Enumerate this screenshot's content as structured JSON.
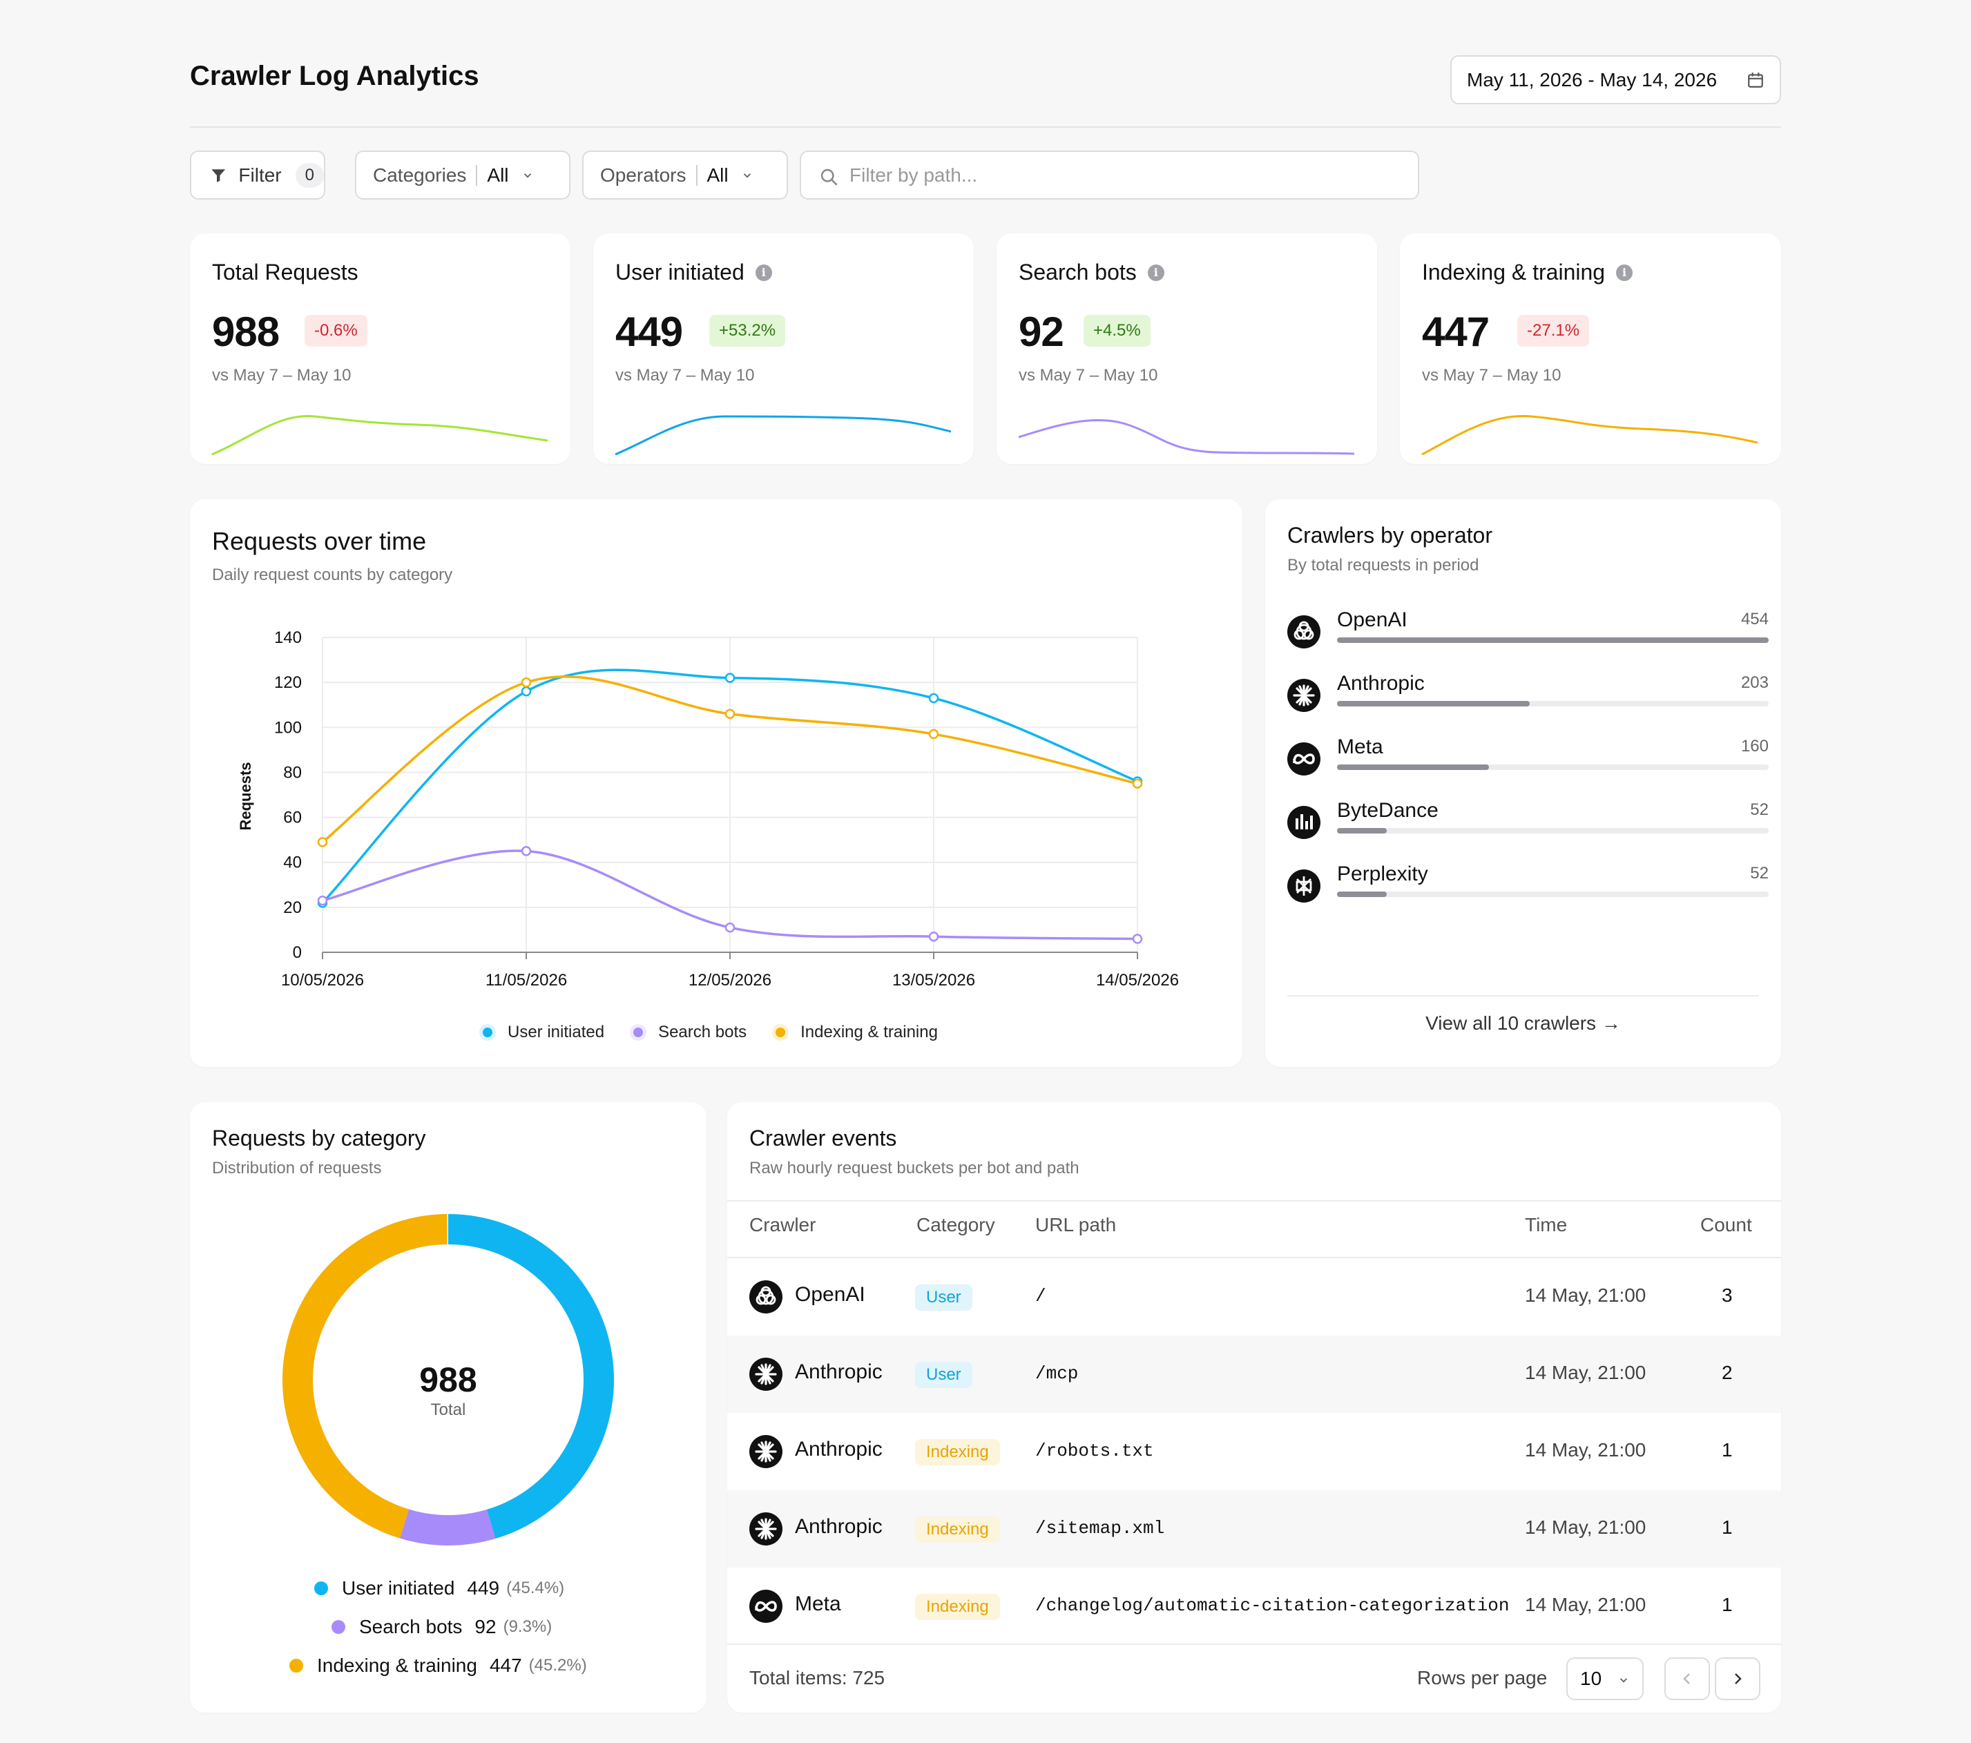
{
  "header": {
    "title": "Crawler Log Analytics",
    "date_range": "May 11, 2026 - May 14, 2026"
  },
  "filters": {
    "filter_label": "Filter",
    "filter_count": "0",
    "categories_label": "Categories",
    "categories_value": "All",
    "operators_label": "Operators",
    "operators_value": "All",
    "search_placeholder": "Filter by path..."
  },
  "stats": [
    {
      "title": "Total Requests",
      "value": "988",
      "delta": "-0.6%",
      "trend": "negative",
      "compare": "vs May 7 – May 10",
      "color": "#a3e635"
    },
    {
      "title": "User initiated",
      "value": "449",
      "delta": "+53.2%",
      "trend": "positive",
      "compare": "vs May 7 – May 10",
      "color": "#0ea5e9"
    },
    {
      "title": "Search bots",
      "value": "92",
      "delta": "+4.5%",
      "trend": "positive",
      "compare": "vs May 7 – May 10",
      "color": "#a78bfa"
    },
    {
      "title": "Indexing & training",
      "value": "447",
      "delta": "-27.1%",
      "trend": "negative",
      "compare": "vs May 7 – May 10",
      "color": "#f5b000"
    }
  ],
  "requests_over_time": {
    "title": "Requests over time",
    "subtitle": "Daily request counts by category"
  },
  "chart_data": {
    "type": "line",
    "x": [
      "10/05/2026",
      "11/05/2026",
      "12/05/2026",
      "13/05/2026",
      "14/05/2026"
    ],
    "series": [
      {
        "name": "User initiated",
        "values": [
          22,
          116,
          122,
          113,
          76
        ],
        "color": "#0fb5f0"
      },
      {
        "name": "Search bots",
        "values": [
          23,
          45,
          11,
          7,
          6
        ],
        "color": "#a78bfa"
      },
      {
        "name": "Indexing & training",
        "values": [
          49,
          120,
          106,
          97,
          75
        ],
        "color": "#f5b000"
      }
    ],
    "ylabel": "Requests",
    "ylim": [
      0,
      140
    ],
    "yticks": [
      "0",
      "20",
      "40",
      "60",
      "80",
      "100",
      "120",
      "140"
    ],
    "grid": true,
    "legend": "bottom"
  },
  "operators": {
    "title": "Crawlers by operator",
    "subtitle": "By total requests in period",
    "items": [
      {
        "name": "OpenAI",
        "count": "454",
        "fraction": 1.0,
        "icon": "openai-logo-icon"
      },
      {
        "name": "Anthropic",
        "count": "203",
        "fraction": 0.447,
        "icon": "anthropic-logo-icon"
      },
      {
        "name": "Meta",
        "count": "160",
        "fraction": 0.352,
        "icon": "meta-logo-icon"
      },
      {
        "name": "ByteDance",
        "count": "52",
        "fraction": 0.115,
        "icon": "bytedance-logo-icon"
      },
      {
        "name": "Perplexity",
        "count": "52",
        "fraction": 0.115,
        "icon": "perplexity-logo-icon"
      }
    ],
    "view_all": "View all 10 crawlers →"
  },
  "category_donut": {
    "title": "Requests by category",
    "subtitle": "Distribution of requests",
    "total": "988",
    "total_label": "Total",
    "segments": [
      {
        "name": "User initiated",
        "value": "449",
        "pct": "(45.4%)",
        "share": 0.454,
        "color": "#0fb5f0"
      },
      {
        "name": "Search bots",
        "value": "92",
        "pct": "(9.3%)",
        "share": 0.093,
        "color": "#a78bfa"
      },
      {
        "name": "Indexing & training",
        "value": "447",
        "pct": "(45.2%)",
        "share": 0.452,
        "color": "#f5b000"
      }
    ]
  },
  "events": {
    "title": "Crawler events",
    "subtitle": "Raw hourly request buckets per bot and path",
    "columns": [
      "Crawler",
      "Category",
      "URL path",
      "Time",
      "Count"
    ],
    "rows": [
      {
        "crawler": "OpenAI",
        "category": "User",
        "path": "/",
        "time": "14 May, 21:00",
        "count": "3"
      },
      {
        "crawler": "Anthropic",
        "category": "User",
        "path": "/mcp",
        "time": "14 May, 21:00",
        "count": "2"
      },
      {
        "crawler": "Anthropic",
        "category": "Indexing",
        "path": "/robots.txt",
        "time": "14 May, 21:00",
        "count": "1"
      },
      {
        "crawler": "Anthropic",
        "category": "Indexing",
        "path": "/sitemap.xml",
        "time": "14 May, 21:00",
        "count": "1"
      },
      {
        "crawler": "Meta",
        "category": "Indexing",
        "path": "/changelog/automatic-citation-categorization",
        "time": "14 May, 21:00",
        "count": "1"
      }
    ],
    "total_items": "Total items: 725",
    "rows_per_page_label": "Rows per page",
    "rows_per_page": "10"
  }
}
